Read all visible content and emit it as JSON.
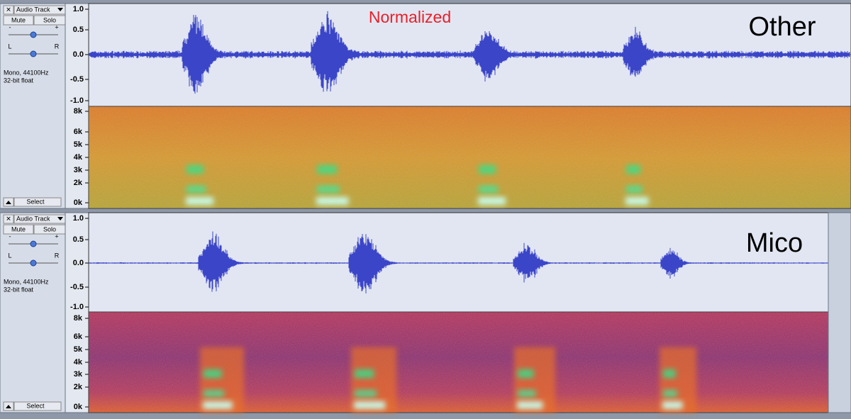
{
  "annotation": "Normalized",
  "tracks": [
    {
      "name": "Audio Track",
      "close": "✕",
      "mute": "Mute",
      "solo": "Solo",
      "gain_minus": "-",
      "gain_plus": "+",
      "pan_left": "L",
      "pan_right": "R",
      "format": "Mono, 44100Hz",
      "bit_depth": "32-bit float",
      "select": "Select",
      "label": "Other",
      "waveform_ticks": [
        "1.0",
        "0.5",
        "0.0",
        "-0.5",
        "-1.0"
      ],
      "spectrogram_ticks": [
        "8k",
        "6k",
        "5k",
        "4k",
        "3k",
        "2k",
        "0k"
      ]
    },
    {
      "name": "Audio Track",
      "close": "✕",
      "mute": "Mute",
      "solo": "Solo",
      "gain_minus": "-",
      "gain_plus": "+",
      "pan_left": "L",
      "pan_right": "R",
      "format": "Mono, 44100Hz",
      "bit_depth": "32-bit float",
      "select": "Select",
      "label": "Mico",
      "waveform_ticks": [
        "1.0",
        "0.5",
        "0.0",
        "-0.5",
        "-1.0"
      ],
      "spectrogram_ticks": [
        "8k",
        "6k",
        "5k",
        "4k",
        "3k",
        "2k",
        "0k"
      ]
    }
  ]
}
